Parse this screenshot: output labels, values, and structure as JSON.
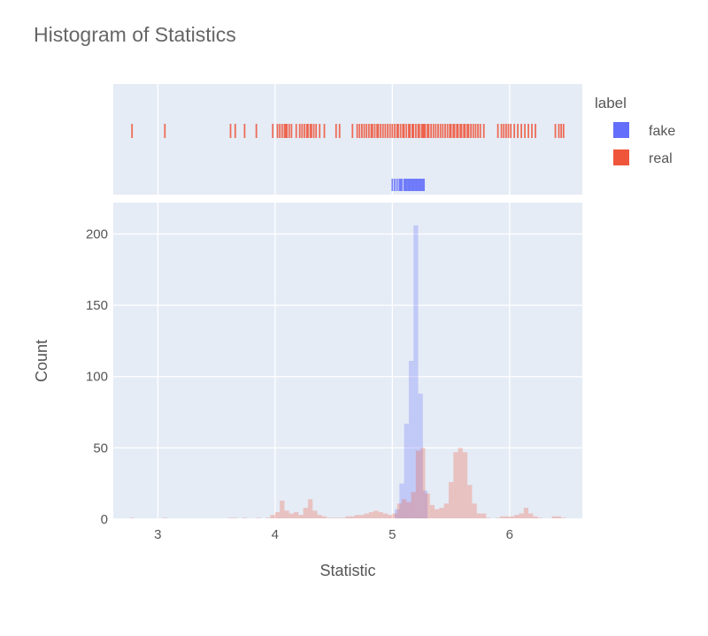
{
  "chart_data": {
    "type": "bar",
    "title": "Histogram of Statistics",
    "xlabel": "Statistic",
    "ylabel": "Count",
    "xlim": [
      2.62,
      6.62
    ],
    "ylim": [
      0,
      222
    ],
    "x_ticks": [
      3,
      4,
      5,
      6
    ],
    "y_ticks": [
      0,
      50,
      100,
      150,
      200
    ],
    "grid": true,
    "bin_width": 0.04,
    "legend": {
      "title": "label",
      "placement": "top-right",
      "entries": [
        "fake",
        "real"
      ]
    },
    "series": [
      {
        "name": "fake",
        "color": "#636efa",
        "bins": [
          {
            "x": 5.04,
            "count": 7
          },
          {
            "x": 5.08,
            "count": 25
          },
          {
            "x": 5.12,
            "count": 67
          },
          {
            "x": 5.16,
            "count": 111
          },
          {
            "x": 5.2,
            "count": 206
          },
          {
            "x": 5.24,
            "count": 88
          },
          {
            "x": 5.28,
            "count": 20
          }
        ],
        "rug": [
          5.0,
          5.02,
          5.04,
          5.06,
          5.07,
          5.08,
          5.1,
          5.11,
          5.12,
          5.13,
          5.14,
          5.15,
          5.16,
          5.17,
          5.18,
          5.19,
          5.2,
          5.21,
          5.22,
          5.23,
          5.24,
          5.25,
          5.26,
          5.27
        ]
      },
      {
        "name": "real",
        "color": "#ef553b",
        "bins": [
          {
            "x": 2.78,
            "count": 1
          },
          {
            "x": 3.06,
            "count": 1
          },
          {
            "x": 3.62,
            "count": 1
          },
          {
            "x": 3.66,
            "count": 1
          },
          {
            "x": 3.74,
            "count": 1
          },
          {
            "x": 3.86,
            "count": 1
          },
          {
            "x": 3.94,
            "count": 1
          },
          {
            "x": 3.98,
            "count": 3
          },
          {
            "x": 4.02,
            "count": 5
          },
          {
            "x": 4.06,
            "count": 13
          },
          {
            "x": 4.1,
            "count": 6
          },
          {
            "x": 4.14,
            "count": 4
          },
          {
            "x": 4.18,
            "count": 5
          },
          {
            "x": 4.22,
            "count": 3
          },
          {
            "x": 4.26,
            "count": 8
          },
          {
            "x": 4.3,
            "count": 14
          },
          {
            "x": 4.34,
            "count": 6
          },
          {
            "x": 4.38,
            "count": 3
          },
          {
            "x": 4.42,
            "count": 2
          },
          {
            "x": 4.46,
            "count": 1
          },
          {
            "x": 4.5,
            "count": 1
          },
          {
            "x": 4.54,
            "count": 1
          },
          {
            "x": 4.58,
            "count": 1
          },
          {
            "x": 4.62,
            "count": 2
          },
          {
            "x": 4.66,
            "count": 2
          },
          {
            "x": 4.7,
            "count": 3
          },
          {
            "x": 4.74,
            "count": 3
          },
          {
            "x": 4.78,
            "count": 4
          },
          {
            "x": 4.82,
            "count": 5
          },
          {
            "x": 4.86,
            "count": 6
          },
          {
            "x": 4.9,
            "count": 5
          },
          {
            "x": 4.94,
            "count": 4
          },
          {
            "x": 4.98,
            "count": 3
          },
          {
            "x": 5.02,
            "count": 4
          },
          {
            "x": 5.06,
            "count": 11
          },
          {
            "x": 5.1,
            "count": 14
          },
          {
            "x": 5.14,
            "count": 12
          },
          {
            "x": 5.18,
            "count": 19
          },
          {
            "x": 5.22,
            "count": 48
          },
          {
            "x": 5.26,
            "count": 50
          },
          {
            "x": 5.3,
            "count": 18
          },
          {
            "x": 5.34,
            "count": 10
          },
          {
            "x": 5.38,
            "count": 7
          },
          {
            "x": 5.42,
            "count": 8
          },
          {
            "x": 5.46,
            "count": 11
          },
          {
            "x": 5.5,
            "count": 26
          },
          {
            "x": 5.54,
            "count": 47
          },
          {
            "x": 5.58,
            "count": 50
          },
          {
            "x": 5.62,
            "count": 47
          },
          {
            "x": 5.66,
            "count": 24
          },
          {
            "x": 5.7,
            "count": 11
          },
          {
            "x": 5.74,
            "count": 4
          },
          {
            "x": 5.78,
            "count": 4
          },
          {
            "x": 5.82,
            "count": 1
          },
          {
            "x": 5.9,
            "count": 1
          },
          {
            "x": 5.94,
            "count": 2
          },
          {
            "x": 5.98,
            "count": 2
          },
          {
            "x": 6.02,
            "count": 2
          },
          {
            "x": 6.06,
            "count": 3
          },
          {
            "x": 6.1,
            "count": 4
          },
          {
            "x": 6.14,
            "count": 8
          },
          {
            "x": 6.18,
            "count": 4
          },
          {
            "x": 6.22,
            "count": 2
          },
          {
            "x": 6.26,
            "count": 1
          },
          {
            "x": 6.38,
            "count": 2
          },
          {
            "x": 6.42,
            "count": 2
          },
          {
            "x": 6.46,
            "count": 1
          }
        ],
        "rug": [
          2.78,
          3.06,
          3.62,
          3.66,
          3.74,
          3.84,
          3.98,
          4.02,
          4.04,
          4.06,
          4.08,
          4.09,
          4.1,
          4.12,
          4.14,
          4.18,
          4.21,
          4.23,
          4.25,
          4.27,
          4.28,
          4.3,
          4.31,
          4.33,
          4.35,
          4.38,
          4.42,
          4.52,
          4.55,
          4.66,
          4.7,
          4.72,
          4.74,
          4.76,
          4.78,
          4.8,
          4.82,
          4.83,
          4.85,
          4.87,
          4.88,
          4.9,
          4.92,
          4.94,
          4.96,
          4.98,
          5.0,
          5.02,
          5.04,
          5.05,
          5.07,
          5.09,
          5.1,
          5.12,
          5.14,
          5.15,
          5.17,
          5.18,
          5.2,
          5.22,
          5.23,
          5.25,
          5.26,
          5.27,
          5.28,
          5.3,
          5.31,
          5.33,
          5.35,
          5.37,
          5.39,
          5.41,
          5.43,
          5.45,
          5.47,
          5.49,
          5.5,
          5.52,
          5.53,
          5.55,
          5.56,
          5.58,
          5.59,
          5.61,
          5.62,
          5.64,
          5.65,
          5.67,
          5.69,
          5.71,
          5.73,
          5.75,
          5.78,
          5.9,
          5.93,
          5.95,
          5.97,
          5.99,
          6.01,
          6.04,
          6.07,
          6.1,
          6.13,
          6.16,
          6.19,
          6.22,
          6.39,
          6.42,
          6.44,
          6.46
        ]
      }
    ]
  }
}
